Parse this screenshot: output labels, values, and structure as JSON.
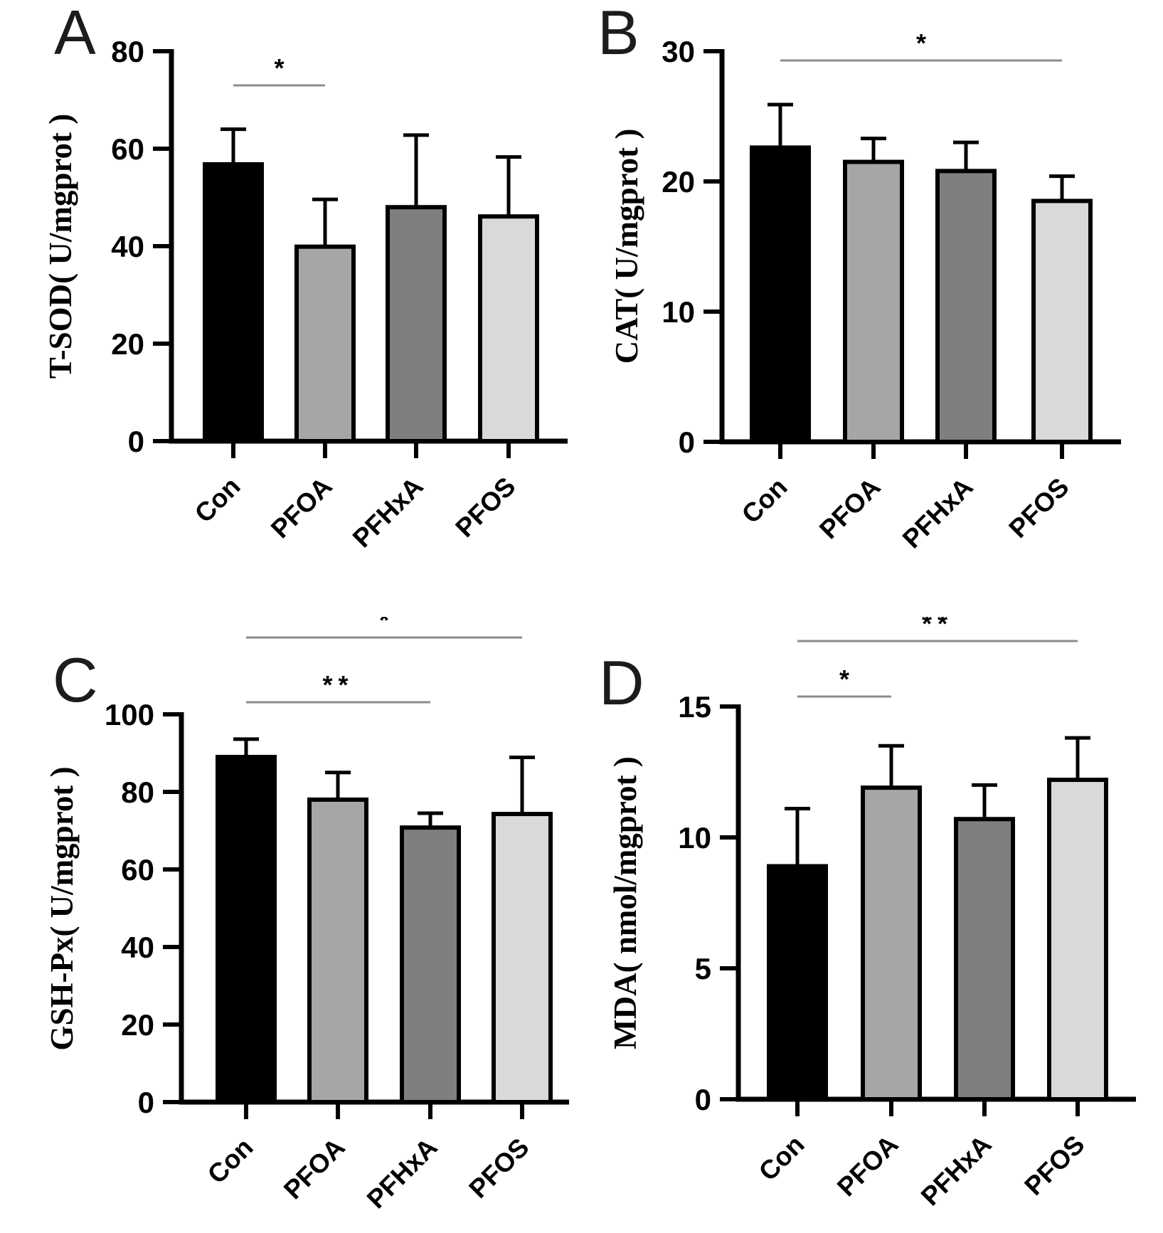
{
  "figure_title": "",
  "chart_data": [
    {
      "panel": "A",
      "type": "bar",
      "title": "",
      "xlabel": "",
      "ylabel": "T-SOD（ U/mgprot）",
      "categories": [
        "Con",
        "PFOA",
        "PFHxA",
        "PFOS"
      ],
      "values": [
        56.8,
        39.9,
        48.0,
        46.1
      ],
      "errors_upper": [
        7.2,
        9.7,
        14.8,
        12.2
      ],
      "ylim": [
        0,
        80
      ],
      "yticks": [
        0,
        20,
        40,
        60,
        80
      ],
      "grid": false,
      "legend": null,
      "bar_colors": [
        "#000000",
        "#a6a6a6",
        "#7f7f7f",
        "#d9d9d9"
      ],
      "bar_edge_color": "#000000",
      "significance": [
        {
          "group1": "Con",
          "group2": "PFOA",
          "label": "*"
        }
      ]
    },
    {
      "panel": "B",
      "type": "bar",
      "title": "",
      "xlabel": "",
      "ylabel": "CAT（ U/mgprot）",
      "categories": [
        "Con",
        "PFOA",
        "PFHxA",
        "PFOS"
      ],
      "values": [
        22.6,
        21.5,
        20.8,
        18.5
      ],
      "errors_upper": [
        3.3,
        1.8,
        2.2,
        1.9
      ],
      "ylim": [
        0,
        30
      ],
      "yticks": [
        0,
        10,
        20,
        30
      ],
      "grid": false,
      "legend": null,
      "bar_colors": [
        "#000000",
        "#a6a6a6",
        "#7f7f7f",
        "#d9d9d9"
      ],
      "bar_edge_color": "#000000",
      "significance": [
        {
          "group1": "Con",
          "group2": "PFOS",
          "label": "*"
        }
      ]
    },
    {
      "panel": "C",
      "type": "bar",
      "title": "",
      "xlabel": "",
      "ylabel": "GSH-Px（ U/mgprot）",
      "categories": [
        "Con",
        "PFOA",
        "PFHxA",
        "PFOS"
      ],
      "values": [
        89.0,
        78.0,
        70.8,
        74.3
      ],
      "errors_upper": [
        4.6,
        7.0,
        3.7,
        14.6
      ],
      "ylim": [
        0,
        100
      ],
      "yticks": [
        0,
        20,
        40,
        60,
        80,
        100
      ],
      "grid": false,
      "legend": null,
      "bar_colors": [
        "#000000",
        "#a6a6a6",
        "#7f7f7f",
        "#d9d9d9"
      ],
      "bar_edge_color": "#000000",
      "significance": [
        {
          "group1": "Con",
          "group2": "PFOS",
          "label": "*"
        },
        {
          "group1": "Con",
          "group2": "PFHxA",
          "label": "**"
        }
      ]
    },
    {
      "panel": "D",
      "type": "bar",
      "title": "",
      "xlabel": "",
      "ylabel": "MDA（ nmol/mgprot）",
      "categories": [
        "Con",
        "PFOA",
        "PFHxA",
        "PFOS"
      ],
      "values": [
        8.9,
        11.9,
        10.7,
        12.2
      ],
      "errors_upper": [
        2.2,
        1.6,
        1.3,
        1.6
      ],
      "ylim": [
        0,
        15
      ],
      "yticks": [
        0,
        5,
        10,
        15
      ],
      "grid": false,
      "legend": null,
      "bar_colors": [
        "#000000",
        "#a6a6a6",
        "#7f7f7f",
        "#d9d9d9"
      ],
      "bar_edge_color": "#000000",
      "significance": [
        {
          "group1": "Con",
          "group2": "PFOS",
          "label": "**"
        },
        {
          "group1": "Con",
          "group2": "PFOA",
          "label": "*"
        }
      ]
    }
  ],
  "colors": {
    "background": "#ffffff",
    "axis": "#000000",
    "sig_line": "#8c8c8c",
    "bar_con": "#000000",
    "bar_pfoa": "#a6a6a6",
    "bar_pfhxa": "#7f7f7f",
    "bar_pfos": "#d9d9d9"
  }
}
